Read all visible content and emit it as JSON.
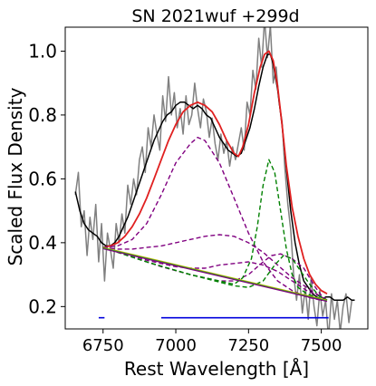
{
  "chart_data": {
    "type": "line",
    "title": "SN 2021wuf  +299d",
    "xlabel": "Rest Wavelength [Å]",
    "ylabel": "Scaled Flux Density",
    "xlim": [
      6620,
      7660
    ],
    "ylim": [
      0.13,
      1.075
    ],
    "xticks": [
      6750,
      7000,
      7250,
      7500
    ],
    "xtick_labels": [
      "6750",
      "7000",
      "7250",
      "7500"
    ],
    "yticks": [
      0.2,
      0.4,
      0.6,
      0.8,
      1.0
    ],
    "ytick_labels": [
      "0.2",
      "0.4",
      "0.6",
      "0.8",
      "1.0"
    ],
    "grid": false,
    "legend": "none",
    "series": [
      {
        "role": "raw spectrum",
        "color": "#808080",
        "x": [
          6655,
          6665,
          6675,
          6685,
          6695,
          6705,
          6715,
          6725,
          6735,
          6745,
          6755,
          6765,
          6775,
          6785,
          6795,
          6805,
          6815,
          6825,
          6835,
          6845,
          6855,
          6865,
          6875,
          6885,
          6895,
          6905,
          6915,
          6925,
          6935,
          6945,
          6955,
          6965,
          6975,
          6985,
          6995,
          7005,
          7015,
          7025,
          7035,
          7045,
          7055,
          7065,
          7075,
          7085,
          7095,
          7105,
          7115,
          7125,
          7135,
          7145,
          7155,
          7165,
          7175,
          7185,
          7195,
          7205,
          7215,
          7225,
          7235,
          7245,
          7255,
          7265,
          7275,
          7285,
          7295,
          7305,
          7315,
          7325,
          7335,
          7345,
          7355,
          7365,
          7375,
          7385,
          7395,
          7405,
          7415,
          7425,
          7435,
          7445,
          7455,
          7465,
          7475,
          7485,
          7495,
          7505,
          7515,
          7525,
          7535,
          7545,
          7555,
          7565,
          7575,
          7585,
          7595,
          7605
        ],
        "y": [
          0.55,
          0.62,
          0.45,
          0.5,
          0.36,
          0.48,
          0.41,
          0.52,
          0.34,
          0.46,
          0.28,
          0.43,
          0.38,
          0.32,
          0.46,
          0.4,
          0.49,
          0.43,
          0.58,
          0.52,
          0.6,
          0.55,
          0.66,
          0.7,
          0.62,
          0.76,
          0.7,
          0.8,
          0.74,
          0.69,
          0.86,
          0.78,
          0.92,
          0.8,
          0.87,
          0.76,
          0.82,
          0.74,
          0.86,
          0.77,
          0.8,
          0.9,
          0.82,
          0.76,
          0.85,
          0.81,
          0.73,
          0.79,
          0.71,
          0.66,
          0.74,
          0.68,
          0.72,
          0.64,
          0.7,
          0.66,
          0.71,
          0.76,
          0.69,
          0.84,
          0.8,
          0.94,
          0.88,
          1.04,
          0.95,
          1.1,
          0.98,
          1.08,
          0.9,
          0.95,
          0.84,
          0.78,
          0.63,
          0.52,
          0.44,
          0.3,
          0.22,
          0.3,
          0.18,
          0.26,
          0.16,
          0.29,
          0.2,
          0.14,
          0.25,
          0.17,
          0.22,
          0.1,
          0.24,
          0.16,
          0.22,
          0.12,
          0.2,
          0.24,
          0.15,
          0.22
        ]
      },
      {
        "role": "smoothed spectrum",
        "color": "#000000",
        "x": [
          6655,
          6670,
          6685,
          6700,
          6715,
          6730,
          6745,
          6760,
          6775,
          6790,
          6805,
          6820,
          6835,
          6850,
          6865,
          6880,
          6895,
          6910,
          6925,
          6940,
          6955,
          6970,
          6985,
          7000,
          7015,
          7030,
          7045,
          7060,
          7075,
          7090,
          7105,
          7120,
          7135,
          7150,
          7165,
          7180,
          7195,
          7210,
          7225,
          7240,
          7255,
          7270,
          7285,
          7300,
          7315,
          7325,
          7335,
          7350,
          7365,
          7380,
          7395,
          7410,
          7425,
          7440,
          7455,
          7470,
          7485,
          7500,
          7515,
          7530,
          7545,
          7560,
          7575,
          7590,
          7605,
          7615
        ],
        "y": [
          0.56,
          0.5,
          0.46,
          0.44,
          0.43,
          0.42,
          0.4,
          0.39,
          0.39,
          0.4,
          0.42,
          0.45,
          0.48,
          0.52,
          0.56,
          0.6,
          0.64,
          0.68,
          0.72,
          0.75,
          0.78,
          0.8,
          0.81,
          0.83,
          0.84,
          0.84,
          0.83,
          0.82,
          0.83,
          0.82,
          0.8,
          0.79,
          0.76,
          0.73,
          0.71,
          0.69,
          0.68,
          0.67,
          0.68,
          0.72,
          0.76,
          0.82,
          0.89,
          0.95,
          0.99,
          0.99,
          0.96,
          0.88,
          0.77,
          0.63,
          0.5,
          0.4,
          0.33,
          0.28,
          0.26,
          0.24,
          0.23,
          0.22,
          0.23,
          0.23,
          0.22,
          0.22,
          0.22,
          0.23,
          0.22,
          0.22
        ]
      },
      {
        "role": "total fit",
        "color": "#e02020",
        "x": [
          6750,
          6775,
          6800,
          6825,
          6850,
          6875,
          6900,
          6925,
          6950,
          6975,
          7000,
          7025,
          7050,
          7075,
          7100,
          7125,
          7150,
          7175,
          7200,
          7215,
          7230,
          7250,
          7270,
          7290,
          7305,
          7320,
          7335,
          7350,
          7365,
          7380,
          7400,
          7420,
          7440,
          7460,
          7480,
          7500,
          7520
        ],
        "y": [
          0.385,
          0.39,
          0.4,
          0.42,
          0.45,
          0.49,
          0.54,
          0.6,
          0.66,
          0.72,
          0.77,
          0.81,
          0.83,
          0.84,
          0.83,
          0.81,
          0.77,
          0.72,
          0.68,
          0.67,
          0.7,
          0.77,
          0.87,
          0.95,
          0.99,
          1.0,
          0.97,
          0.89,
          0.77,
          0.64,
          0.51,
          0.42,
          0.35,
          0.3,
          0.27,
          0.25,
          0.24
        ]
      },
      {
        "role": "component (dashed)",
        "color": "#800080",
        "x": [
          6750,
          6800,
          6850,
          6900,
          6950,
          7000,
          7050,
          7075,
          7100,
          7150,
          7200,
          7250,
          7300,
          7350,
          7400,
          7450,
          7500,
          7520
        ],
        "y": [
          0.385,
          0.39,
          0.41,
          0.46,
          0.55,
          0.65,
          0.71,
          0.73,
          0.72,
          0.65,
          0.54,
          0.43,
          0.34,
          0.28,
          0.25,
          0.23,
          0.22,
          0.22
        ]
      },
      {
        "role": "component (dashed)",
        "color": "#800080",
        "x": [
          6750,
          6800,
          6850,
          6900,
          6950,
          7000,
          7050,
          7100,
          7150,
          7200,
          7250,
          7300,
          7350,
          7400,
          7450,
          7500,
          7520
        ],
        "y": [
          0.385,
          0.38,
          0.38,
          0.385,
          0.39,
          0.4,
          0.41,
          0.42,
          0.425,
          0.42,
          0.4,
          0.37,
          0.33,
          0.29,
          0.26,
          0.23,
          0.22
        ]
      },
      {
        "role": "component (dashed)",
        "color": "#800080",
        "x": [
          6750,
          6800,
          6850,
          6900,
          6950,
          7000,
          7050,
          7100,
          7150,
          7200,
          7250,
          7300,
          7350,
          7400,
          7450,
          7500,
          7520
        ],
        "y": [
          0.385,
          0.37,
          0.36,
          0.345,
          0.335,
          0.325,
          0.32,
          0.32,
          0.33,
          0.335,
          0.34,
          0.33,
          0.31,
          0.28,
          0.25,
          0.23,
          0.22
        ]
      },
      {
        "role": "component (dashed)",
        "color": "#800080",
        "x": [
          6750,
          6850,
          6950,
          7050,
          7150,
          7200,
          7250,
          7300,
          7330,
          7360,
          7400,
          7440,
          7480,
          7500,
          7520
        ],
        "y": [
          0.385,
          0.355,
          0.325,
          0.3,
          0.28,
          0.28,
          0.3,
          0.34,
          0.36,
          0.365,
          0.35,
          0.32,
          0.26,
          0.235,
          0.22
        ]
      },
      {
        "role": "component (dashed)",
        "color": "#008000",
        "x": [
          6750,
          6900,
          7050,
          7150,
          7200,
          7230,
          7260,
          7280,
          7300,
          7320,
          7340,
          7360,
          7380,
          7400,
          7420,
          7450,
          7480,
          7500,
          7520
        ],
        "y": [
          0.385,
          0.34,
          0.3,
          0.28,
          0.27,
          0.29,
          0.35,
          0.45,
          0.58,
          0.66,
          0.62,
          0.5,
          0.38,
          0.3,
          0.26,
          0.24,
          0.23,
          0.225,
          0.22
        ]
      },
      {
        "role": "component (dashed)",
        "color": "#008000",
        "x": [
          6750,
          6900,
          7050,
          7200,
          7250,
          7300,
          7340,
          7370,
          7400,
          7430,
          7460,
          7490,
          7520
        ],
        "y": [
          0.385,
          0.34,
          0.3,
          0.265,
          0.26,
          0.28,
          0.33,
          0.36,
          0.35,
          0.31,
          0.27,
          0.235,
          0.22
        ]
      },
      {
        "role": "continuum",
        "color": "#bfbf00",
        "x": [
          6750,
          7520
        ],
        "y": [
          0.385,
          0.22
        ]
      },
      {
        "role": "continuum",
        "color": "#2e8b2e",
        "x": [
          6750,
          7520
        ],
        "y": [
          0.383,
          0.218
        ]
      },
      {
        "role": "continuum",
        "color": "#800080",
        "x": [
          6750,
          7520
        ],
        "y": [
          0.381,
          0.216
        ]
      }
    ],
    "bars": [
      {
        "color": "#0000dd",
        "x": [
          6735,
          6755
        ],
        "y": 0.165
      },
      {
        "color": "#0000dd",
        "x": [
          6950,
          7525
        ],
        "y": 0.165
      }
    ]
  }
}
